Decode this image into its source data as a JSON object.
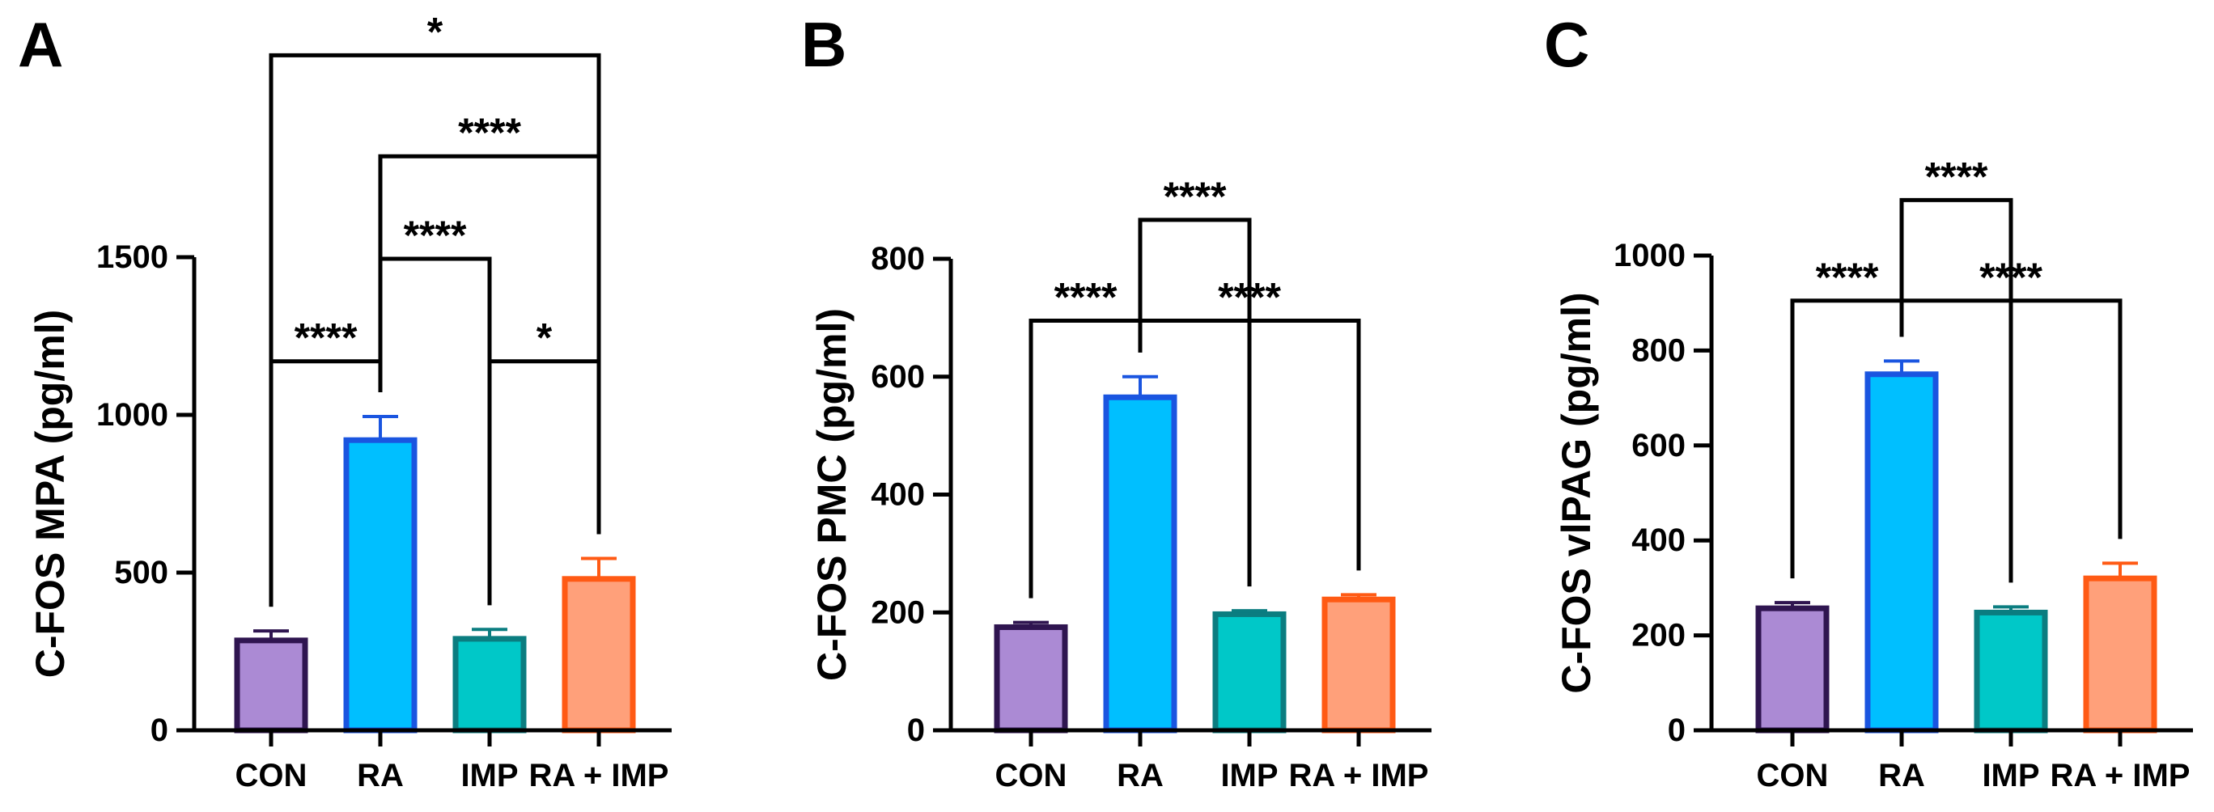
{
  "chart_data": [
    {
      "type": "bar",
      "panel": "A",
      "ylabel": "C-FOS MPA (pg/ml)",
      "categories": [
        "CON",
        "RA",
        "IMP",
        "RA + IMP"
      ],
      "values": [
        285,
        920,
        290,
        480
      ],
      "errors": [
        30,
        75,
        30,
        65
      ],
      "ylim": [
        0,
        1500
      ],
      "yticks": [
        0,
        500,
        1000,
        1500
      ],
      "fills": [
        "#ab8ad4",
        "#00bfff",
        "#00c8c8",
        "#ffa07a"
      ],
      "strokes": [
        "#2f1550",
        "#1a55e0",
        "#0b7d80",
        "#ff5a14"
      ],
      "brackets": [
        {
          "from": 0,
          "to": 1,
          "y": 1170,
          "label": "****"
        },
        {
          "from": 2,
          "to": 3,
          "y": 1170,
          "label": "*"
        },
        {
          "from": 1,
          "to": 2,
          "y": 1495,
          "label": "****"
        },
        {
          "from": 1,
          "to": 3,
          "y": 1820,
          "label": "****"
        },
        {
          "from": 0,
          "to": 3,
          "y": 2140,
          "label": "*"
        }
      ]
    },
    {
      "type": "bar",
      "panel": "B",
      "ylabel": "C-FOS PMC (pg/ml)",
      "categories": [
        "CON",
        "RA",
        "IMP",
        "RA + IMP"
      ],
      "values": [
        175,
        565,
        197,
        222
      ],
      "errors": [
        8,
        35,
        6,
        8
      ],
      "ylim": [
        0,
        800
      ],
      "yticks": [
        0,
        200,
        400,
        600,
        800
      ],
      "fills": [
        "#ab8ad4",
        "#00bfff",
        "#00c8c8",
        "#ffa07a"
      ],
      "strokes": [
        "#2f1550",
        "#1a55e0",
        "#0b7d80",
        "#ff5a14"
      ],
      "brackets": [
        {
          "from": 0,
          "to": 1,
          "y": 695,
          "label": "****"
        },
        {
          "from": 1,
          "to": 3,
          "y": 695,
          "label": "****"
        },
        {
          "from": 1,
          "to": 2,
          "y": 866,
          "label": "****"
        }
      ]
    },
    {
      "type": "bar",
      "panel": "C",
      "ylabel": "C-FOS vlPAG (pg/ml)",
      "categories": [
        "CON",
        "RA",
        "IMP",
        "RA + IMP"
      ],
      "values": [
        257,
        750,
        248,
        320
      ],
      "errors": [
        12,
        28,
        12,
        32
      ],
      "ylim": [
        0,
        1000
      ],
      "yticks": [
        0,
        200,
        400,
        600,
        800,
        1000
      ],
      "fills": [
        "#ab8ad4",
        "#00bfff",
        "#00c8c8",
        "#ffa07a"
      ],
      "strokes": [
        "#2f1550",
        "#1a55e0",
        "#0b7d80",
        "#ff5a14"
      ],
      "brackets": [
        {
          "from": 0,
          "to": 1,
          "y": 905,
          "label": "****"
        },
        {
          "from": 1,
          "to": 3,
          "y": 905,
          "label": "****"
        },
        {
          "from": 1,
          "to": 2,
          "y": 1117,
          "label": "****"
        }
      ]
    }
  ]
}
